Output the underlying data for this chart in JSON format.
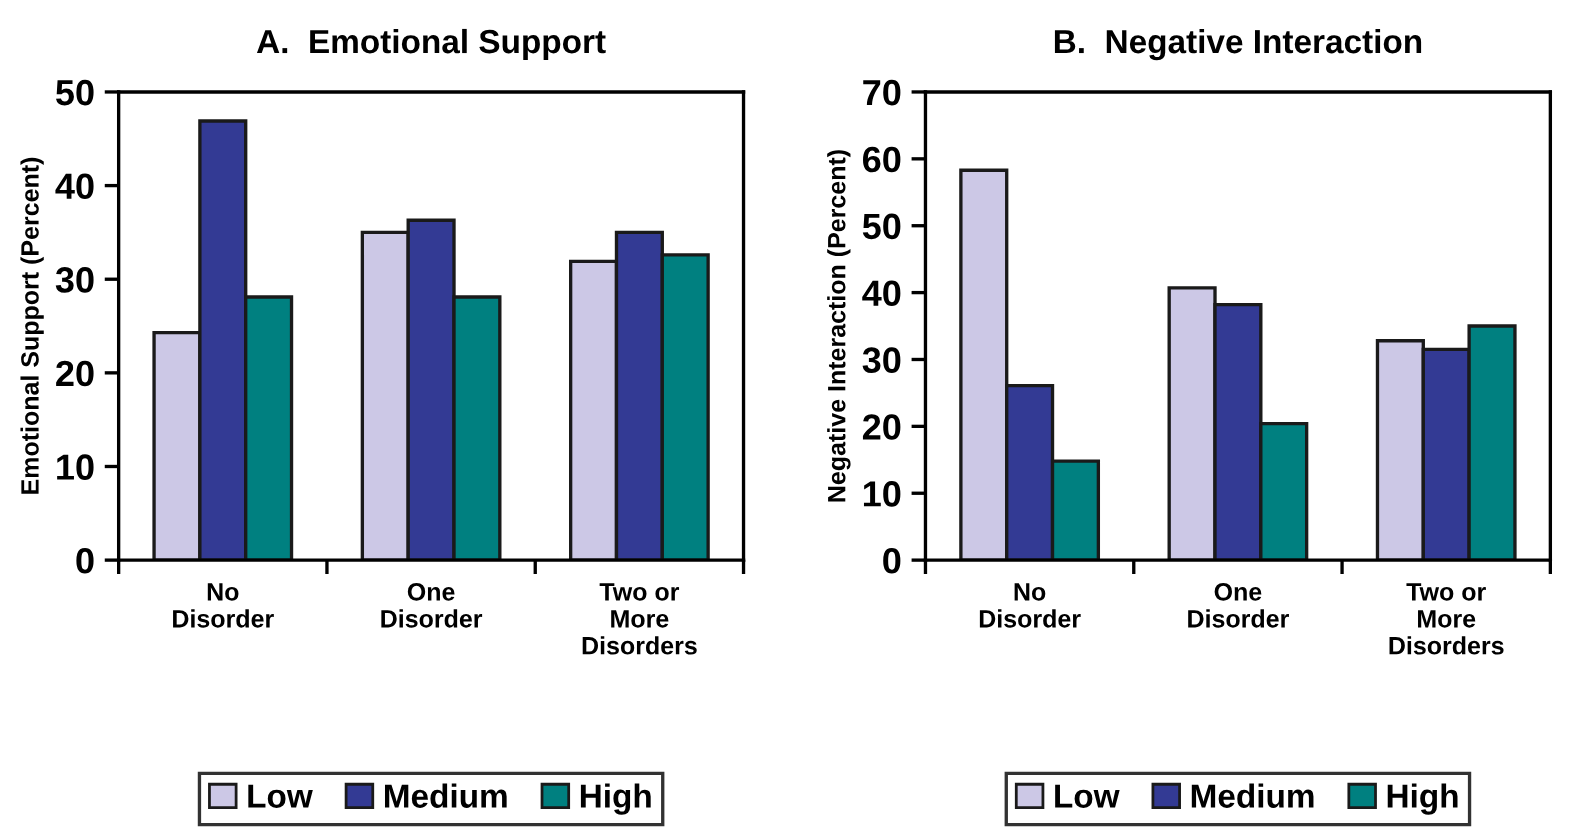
{
  "chart_data": [
    {
      "type": "bar",
      "title": "A.  Emotional Support",
      "ylabel": "Emotional Support (Percent)",
      "categories": [
        "No\nDisorder",
        "One\nDisorder",
        "Two or\nMore\nDisorders"
      ],
      "series": [
        {
          "name": "Low",
          "color": "#ccc8e6",
          "values": [
            24.3,
            35.0,
            31.9
          ]
        },
        {
          "name": "Medium",
          "color": "#333a94",
          "values": [
            46.9,
            36.3,
            35.0
          ]
        },
        {
          "name": "High",
          "color": "#008080",
          "values": [
            28.1,
            28.1,
            32.6
          ]
        }
      ],
      "ylim": [
        0,
        50
      ],
      "yticks": [
        0,
        10,
        20,
        30,
        40,
        50
      ],
      "grid": false,
      "legend": "bottom"
    },
    {
      "type": "bar",
      "title": "B.  Negative Interaction",
      "ylabel": "Negative Interaction (Percent)",
      "categories": [
        "No\nDisorder",
        "One\nDisorder",
        "Two or\nMore\nDisorders"
      ],
      "series": [
        {
          "name": "Low",
          "color": "#ccc8e6",
          "values": [
            58.3,
            40.7,
            32.8
          ]
        },
        {
          "name": "Medium",
          "color": "#333a94",
          "values": [
            26.1,
            38.2,
            31.5
          ]
        },
        {
          "name": "High",
          "color": "#008080",
          "values": [
            14.8,
            20.4,
            35.0
          ]
        }
      ],
      "ylim": [
        0,
        70
      ],
      "yticks": [
        0,
        10,
        20,
        30,
        40,
        50,
        60,
        70
      ],
      "grid": false,
      "legend": "bottom"
    }
  ]
}
